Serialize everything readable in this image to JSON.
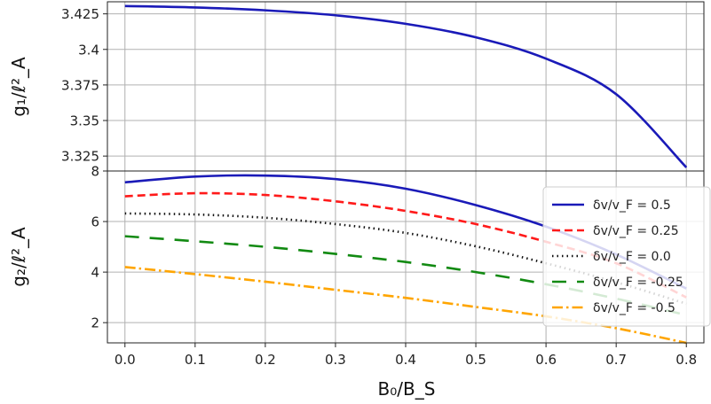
{
  "chart_data": [
    {
      "type": "line",
      "ylabel": "g₁/ℓ²_A",
      "xlim": [
        -0.025,
        0.825
      ],
      "ylim": [
        3.3145,
        3.4335
      ],
      "xticks": [
        0.0,
        0.1,
        0.2,
        0.3,
        0.4,
        0.5,
        0.6,
        0.7,
        0.8
      ],
      "yticks": [
        3.325,
        3.35,
        3.375,
        3.4,
        3.425
      ],
      "ytick_labels": [
        "3.325",
        "3.35",
        "3.375",
        "3.4",
        "3.425"
      ],
      "grid": true,
      "x": [
        0.0,
        0.1,
        0.2,
        0.3,
        0.4,
        0.5,
        0.6,
        0.7,
        0.8
      ],
      "series": [
        {
          "color": "#1a1ab8",
          "style": "solid",
          "values": [
            3.4305,
            3.4295,
            3.4275,
            3.424,
            3.418,
            3.4085,
            3.3935,
            3.3685,
            3.317
          ]
        }
      ]
    },
    {
      "type": "line",
      "ylabel": "g₂/ℓ²_A",
      "xlabel": "B₀/B_S",
      "xlim": [
        -0.025,
        0.825
      ],
      "ylim": [
        1.2,
        8.0
      ],
      "xticks": [
        0.0,
        0.1,
        0.2,
        0.3,
        0.4,
        0.5,
        0.6,
        0.7,
        0.8
      ],
      "xtick_labels": [
        "0.0",
        "0.1",
        "0.2",
        "0.3",
        "0.4",
        "0.5",
        "0.6",
        "0.7",
        "0.8"
      ],
      "yticks": [
        2,
        4,
        6,
        8
      ],
      "ytick_labels": [
        "2",
        "4",
        "6",
        "8"
      ],
      "grid": true,
      "legend_position": "right",
      "x": [
        0.0,
        0.1,
        0.2,
        0.3,
        0.4,
        0.5,
        0.6,
        0.7,
        0.8
      ],
      "series": [
        {
          "name": "δv/v_F = 0.5",
          "color": "#1a1ab8",
          "style": "solid",
          "values": [
            7.55,
            7.78,
            7.82,
            7.68,
            7.3,
            6.65,
            5.8,
            4.7,
            3.35
          ]
        },
        {
          "name": "δv/v_F = 0.25",
          "color": "#ff1a1a",
          "style": "dashed",
          "values": [
            7.0,
            7.12,
            7.05,
            6.8,
            6.42,
            5.9,
            5.2,
            4.35,
            3.0
          ]
        },
        {
          "name": "δv/v_F = 0.0",
          "color": "#111111",
          "style": "dotted",
          "values": [
            6.32,
            6.28,
            6.15,
            5.9,
            5.55,
            5.02,
            4.35,
            3.6,
            2.75
          ]
        },
        {
          "name": "δv/v_F = -0.25",
          "color": "#128a12",
          "style": "longdash",
          "values": [
            5.42,
            5.22,
            5.0,
            4.72,
            4.4,
            4.0,
            3.52,
            2.95,
            2.3
          ]
        },
        {
          "name": "δv/v_F = -0.5",
          "color": "#ffa500",
          "style": "dashdot",
          "values": [
            4.2,
            3.92,
            3.62,
            3.3,
            2.98,
            2.62,
            2.25,
            1.78,
            1.2
          ]
        }
      ]
    }
  ]
}
